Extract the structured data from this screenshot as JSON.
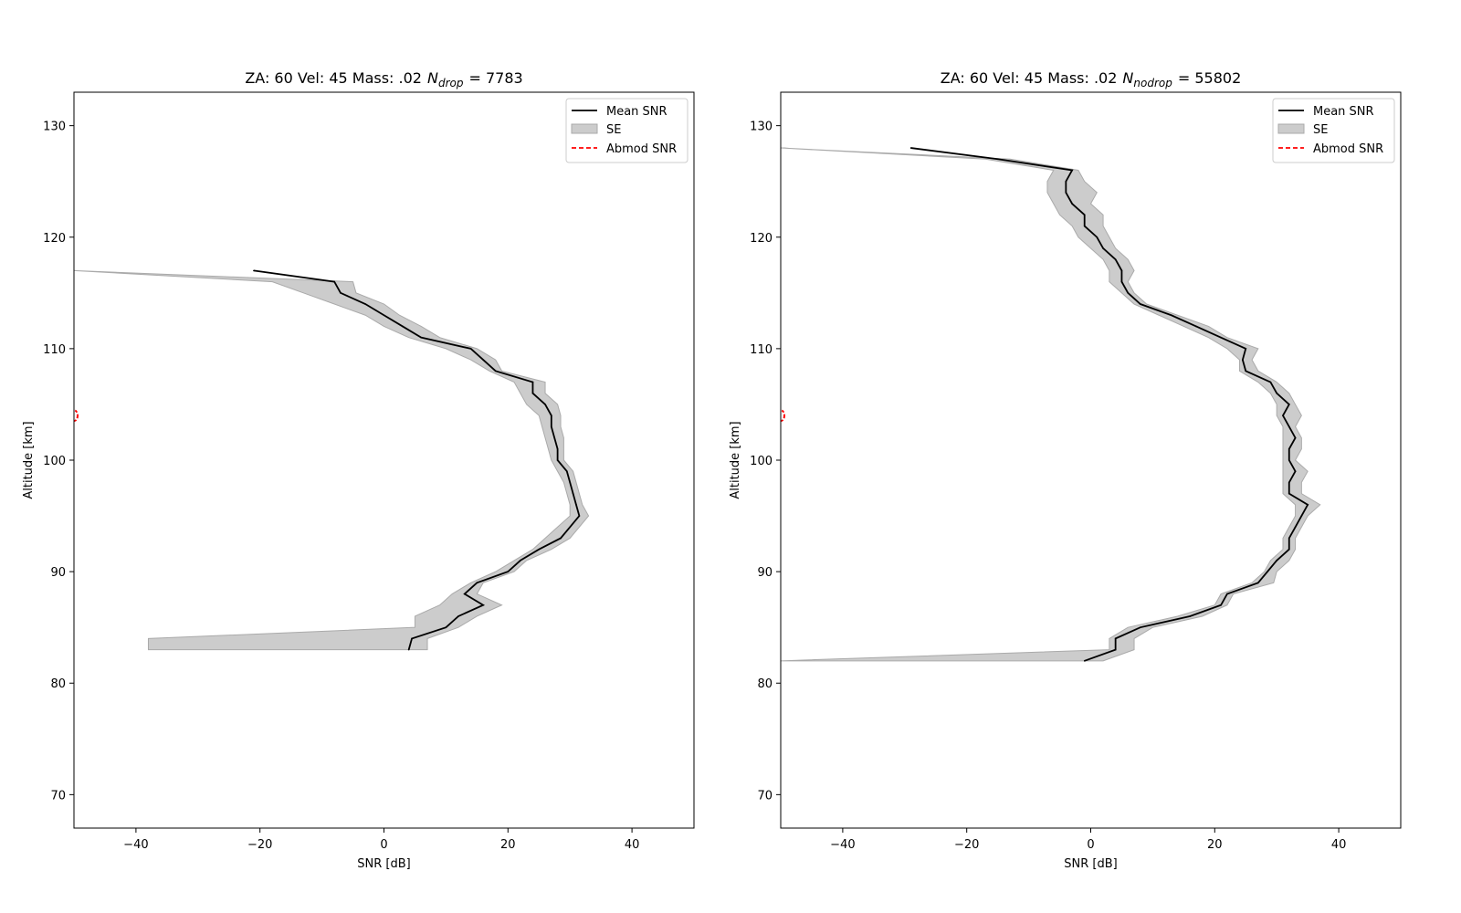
{
  "chart_data": [
    {
      "type": "line",
      "title": "ZA: 60 Vel: 45 Mass: .02",
      "title_symbol": "N",
      "title_subscript": "drop",
      "title_count": "= 7783",
      "xlabel": "SNR [dB]",
      "ylabel": "Altitude [km]",
      "xlim": [
        -50,
        50
      ],
      "ylim": [
        67,
        133
      ],
      "xticks": [
        -40,
        -20,
        0,
        20,
        40
      ],
      "yticks": [
        70,
        80,
        90,
        100,
        110,
        120,
        130
      ],
      "grid": false,
      "legend_position": "top-right",
      "legend": [
        "Mean SNR",
        "SE",
        "Abmod SNR"
      ],
      "series": [
        {
          "name": "Mean SNR",
          "color": "#000000",
          "altitude": [
            117,
            116,
            115,
            114,
            113,
            112,
            111,
            110,
            109,
            108,
            107,
            106,
            105,
            104,
            103,
            102,
            101,
            100,
            99,
            98,
            97,
            96,
            95,
            94,
            93,
            92,
            91,
            90,
            89,
            88,
            87,
            86,
            85,
            84,
            83
          ],
          "snr": [
            -21,
            -8,
            -7,
            -3,
            0,
            3,
            6,
            14,
            16,
            18,
            24,
            24,
            26,
            27,
            27,
            27.5,
            28,
            28,
            29.5,
            30,
            30.5,
            31,
            31.5,
            30,
            28.5,
            25,
            22,
            20,
            15,
            13,
            16,
            12,
            10,
            4.5,
            4
          ]
        },
        {
          "name": "SE",
          "color": "#cccccc",
          "altitude": [
            117,
            116,
            115,
            114,
            113,
            112,
            111,
            110,
            109,
            108,
            107,
            106,
            105,
            104,
            103,
            102,
            101,
            100,
            99,
            98,
            97,
            96,
            95,
            94,
            93,
            92,
            91,
            90,
            89,
            88,
            87,
            86,
            85,
            84,
            83
          ],
          "lower": [
            -50,
            -18,
            -13,
            -8,
            -3,
            0,
            4,
            10,
            14,
            17,
            21,
            22,
            23,
            25,
            25.5,
            26,
            26.5,
            27,
            28,
            29,
            29.5,
            30,
            30,
            28,
            26,
            24,
            21,
            18,
            14,
            11,
            9,
            5,
            5,
            -38,
            -38
          ],
          "upper": [
            -50,
            -5,
            -4.5,
            0,
            2.5,
            6,
            9,
            15,
            18,
            19,
            26,
            26,
            28,
            28.5,
            28.5,
            29,
            29,
            29,
            30.5,
            31,
            31.5,
            32,
            33,
            31.5,
            30,
            27,
            23,
            21,
            16,
            15,
            19,
            15,
            12,
            7,
            7
          ]
        }
      ],
      "abmod_marker": {
        "altitude": 104,
        "snr": -50,
        "color": "#ff0000"
      }
    },
    {
      "type": "line",
      "title": "ZA: 60 Vel: 45 Mass: .02",
      "title_symbol": "N",
      "title_subscript": "nodrop",
      "title_count": "= 55802",
      "xlabel": "SNR [dB]",
      "ylabel": "Altitude [km]",
      "xlim": [
        -50,
        50
      ],
      "ylim": [
        67,
        133
      ],
      "xticks": [
        -40,
        -20,
        0,
        20,
        40
      ],
      "yticks": [
        70,
        80,
        90,
        100,
        110,
        120,
        130
      ],
      "grid": false,
      "legend_position": "top-right",
      "legend": [
        "Mean SNR",
        "SE",
        "Abmod SNR"
      ],
      "series": [
        {
          "name": "Mean SNR",
          "color": "#000000",
          "altitude": [
            128,
            127,
            126,
            125,
            124,
            123,
            122,
            121,
            120,
            119,
            118,
            117,
            116,
            115,
            114,
            113,
            112,
            111,
            110,
            109,
            108,
            107,
            106,
            105,
            104,
            103,
            102,
            101,
            100,
            99,
            98,
            97,
            96,
            95,
            94,
            93,
            92,
            91,
            90,
            89,
            88,
            87,
            86,
            85,
            84,
            83,
            82
          ],
          "snr": [
            -29,
            -15,
            -3,
            -4,
            -4,
            -3,
            -1,
            -1,
            1,
            2,
            4,
            5,
            5,
            6,
            8,
            13,
            17,
            21,
            25,
            24.5,
            25,
            29,
            30,
            32,
            31,
            32,
            33,
            32,
            32,
            33,
            32,
            32,
            35,
            34,
            33,
            32,
            32,
            30,
            28.5,
            27,
            22,
            21,
            16,
            8,
            4,
            4,
            -1
          ]
        },
        {
          "name": "SE",
          "color": "#cccccc",
          "altitude": [
            128,
            127,
            126,
            125,
            124,
            123,
            122,
            121,
            120,
            119,
            118,
            117,
            116,
            115,
            114,
            113,
            112,
            111,
            110,
            109,
            108,
            107,
            106,
            105,
            104,
            103,
            102,
            101,
            100,
            99,
            98,
            97,
            96,
            95,
            94,
            93,
            92,
            91,
            90,
            89,
            88,
            87,
            86,
            85,
            84,
            83,
            82
          ],
          "lower": [
            -50,
            -17,
            -6,
            -7,
            -7,
            -6,
            -5,
            -3,
            -2,
            0,
            2,
            3,
            3,
            5,
            7,
            11,
            15,
            19,
            22,
            24,
            24,
            27,
            29,
            30,
            30,
            31,
            31,
            31,
            31,
            31,
            31,
            31,
            33,
            33,
            32,
            31,
            31,
            29,
            28,
            26,
            21,
            20,
            14,
            6,
            3,
            3,
            -50
          ],
          "upper": [
            -50,
            -13,
            -2,
            -1,
            1,
            0,
            2,
            2,
            3,
            4,
            6,
            7,
            6,
            7,
            9,
            14,
            19,
            22,
            27,
            26,
            27,
            30,
            32,
            33,
            34,
            33,
            34,
            34,
            33,
            35,
            34,
            34,
            37,
            35,
            34,
            33,
            33,
            32,
            30,
            29.5,
            23,
            22,
            18,
            10,
            7,
            7,
            2
          ]
        }
      ],
      "abmod_marker": {
        "altitude": 104,
        "snr": -50,
        "color": "#ff0000"
      }
    }
  ]
}
